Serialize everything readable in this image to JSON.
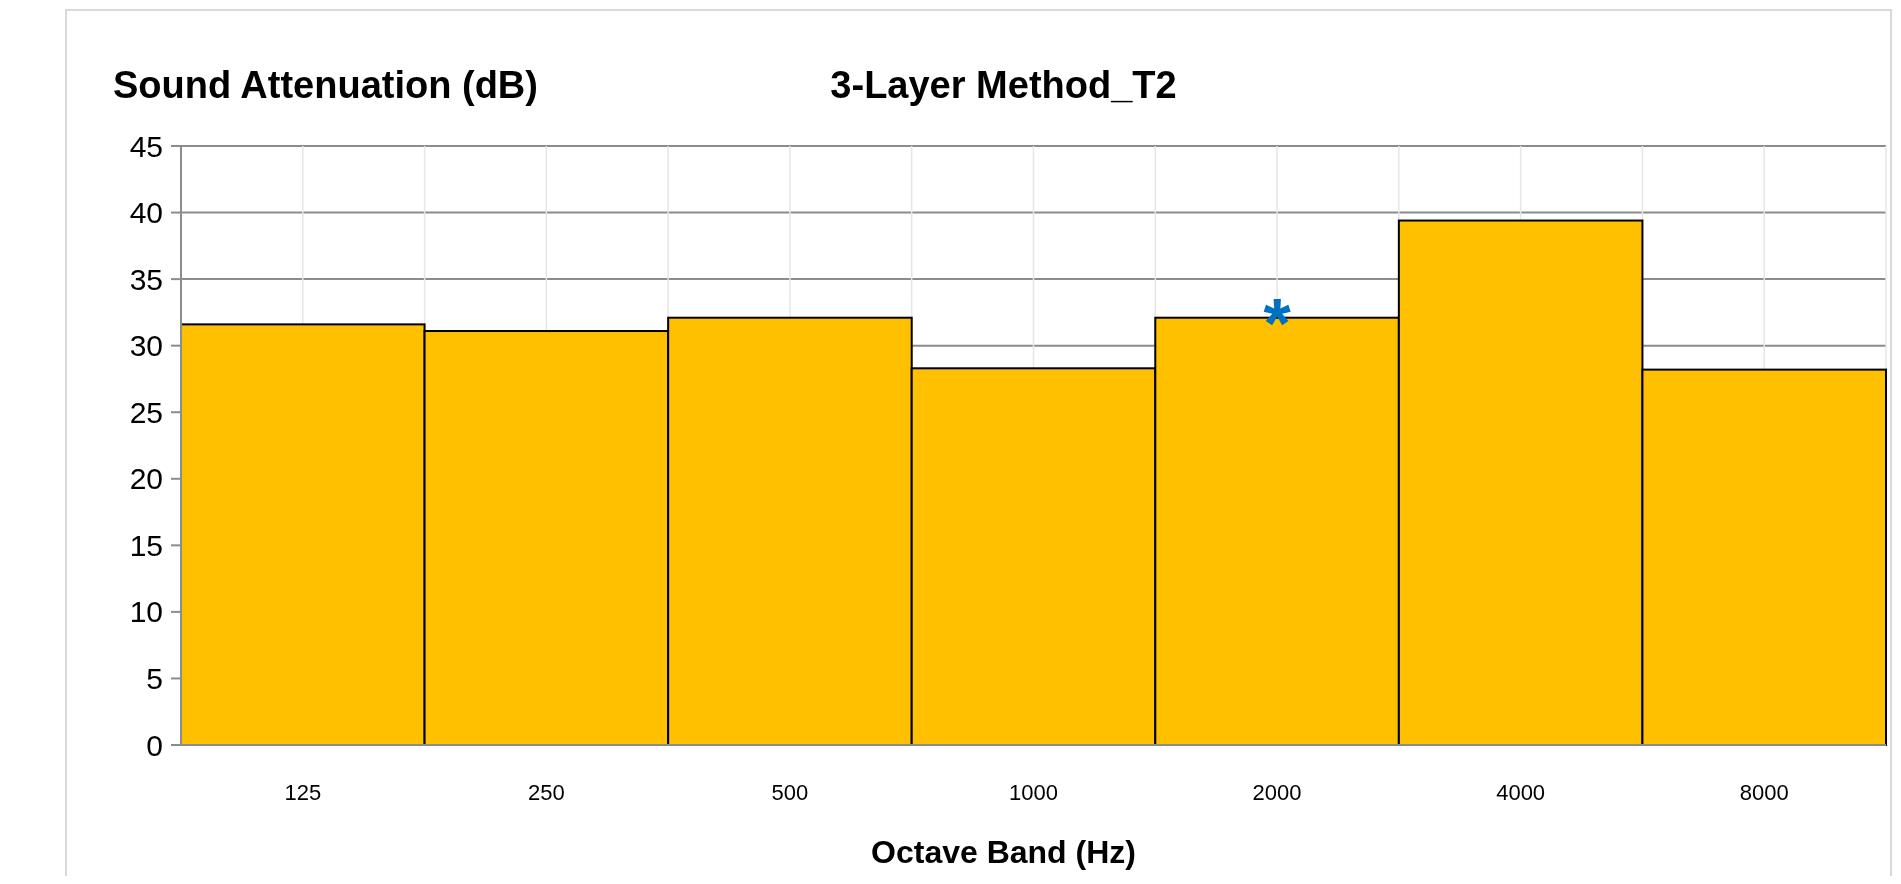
{
  "chart_data": {
    "type": "bar",
    "title": "3-Layer Method_T2",
    "ylabel": "Sound Attenuation (dB)",
    "xlabel": "Octave Band (Hz)",
    "categories": [
      "125",
      "250",
      "500",
      "1000",
      "2000",
      "4000",
      "8000"
    ],
    "values": [
      31.6,
      31.1,
      32.1,
      28.3,
      32.1,
      39.4,
      28.2
    ],
    "color": "#ffc000",
    "ylim": [
      0,
      45
    ],
    "yticks": [
      0,
      5,
      10,
      15,
      20,
      25,
      30,
      35,
      40,
      45
    ],
    "grid": true,
    "annotations": [
      {
        "text": "*",
        "x": "2000",
        "y": 32.1
      }
    ]
  }
}
